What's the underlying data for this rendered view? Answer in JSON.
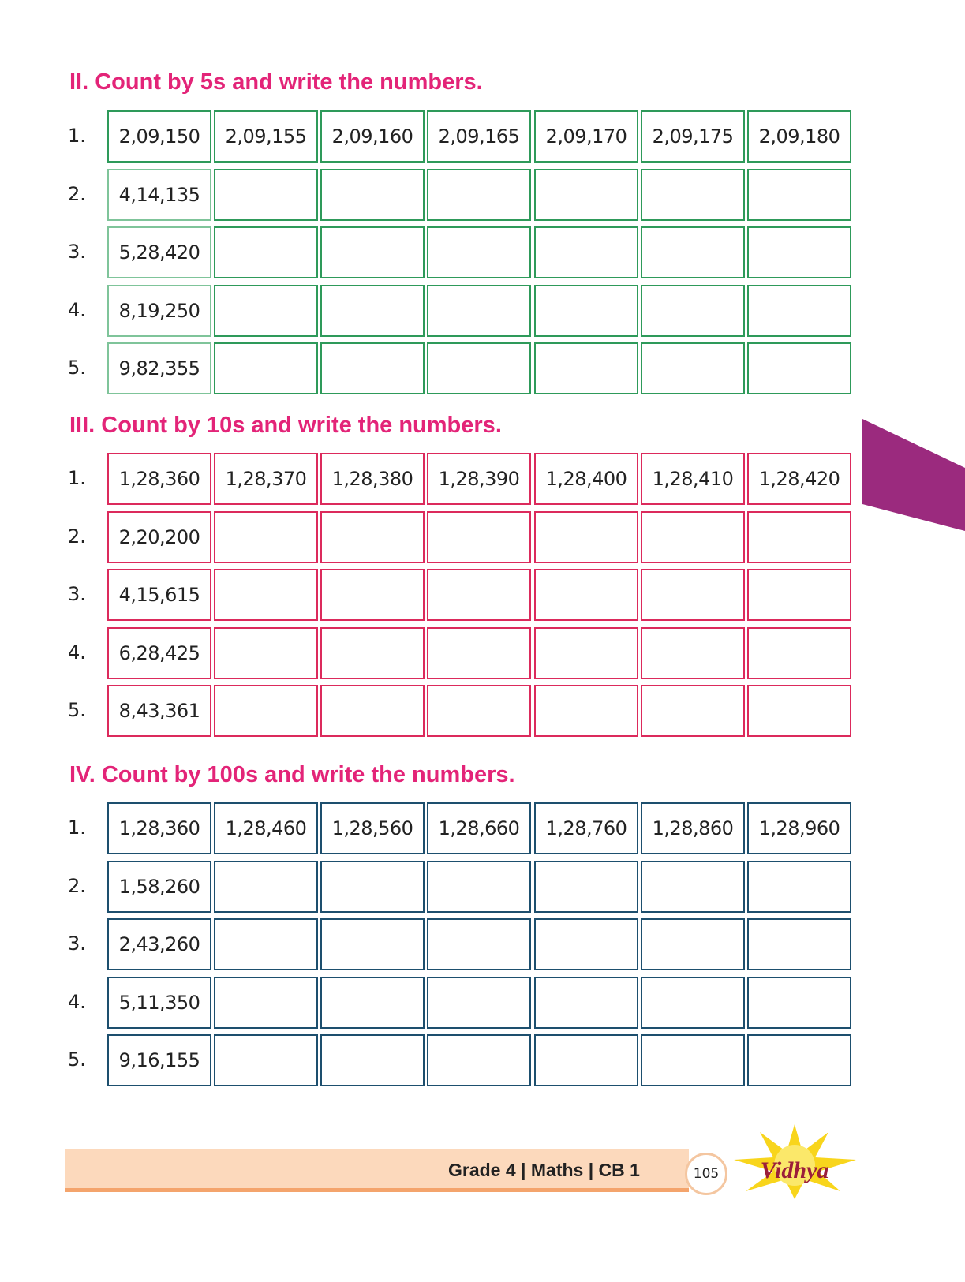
{
  "sections": [
    {
      "heading": "II. Count by 5s and write the numbers.",
      "color": "#2e9a5a",
      "rows": [
        {
          "label": "1.",
          "cells": [
            "2,09,150",
            "2,09,155",
            "2,09,160",
            "2,09,165",
            "2,09,170",
            "2,09,175",
            "2,09,180"
          ]
        },
        {
          "label": "2.",
          "cells": [
            "4,14,135",
            "",
            "",
            "",
            "",
            "",
            ""
          ]
        },
        {
          "label": "3.",
          "cells": [
            "5,28,420",
            "",
            "",
            "",
            "",
            "",
            ""
          ]
        },
        {
          "label": "4.",
          "cells": [
            "8,19,250",
            "",
            "",
            "",
            "",
            "",
            ""
          ]
        },
        {
          "label": "5.",
          "cells": [
            "9,82,355",
            "",
            "",
            "",
            "",
            "",
            ""
          ]
        }
      ]
    },
    {
      "heading": "III. Count by 10s and write the numbers.",
      "color": "#dc2a5c",
      "rows": [
        {
          "label": "1.",
          "cells": [
            "1,28,360",
            "1,28,370",
            "1,28,380",
            "1,28,390",
            "1,28,400",
            "1,28,410",
            "1,28,420"
          ]
        },
        {
          "label": "2.",
          "cells": [
            "2,20,200",
            "",
            "",
            "",
            "",
            "",
            ""
          ]
        },
        {
          "label": "3.",
          "cells": [
            "4,15,615",
            "",
            "",
            "",
            "",
            "",
            ""
          ]
        },
        {
          "label": "4.",
          "cells": [
            "6,28,425",
            "",
            "",
            "",
            "",
            "",
            ""
          ]
        },
        {
          "label": "5.",
          "cells": [
            "8,43,361",
            "",
            "",
            "",
            "",
            "",
            ""
          ]
        }
      ]
    },
    {
      "heading": "IV. Count by 100s and write the numbers.",
      "color": "#1d4f6e",
      "rows": [
        {
          "label": "1.",
          "cells": [
            "1,28,360",
            "1,28,460",
            "1,28,560",
            "1,28,660",
            "1,28,760",
            "1,28,860",
            "1,28,960"
          ]
        },
        {
          "label": "2.",
          "cells": [
            "1,58,260",
            "",
            "",
            "",
            "",
            "",
            ""
          ]
        },
        {
          "label": "3.",
          "cells": [
            "2,43,260",
            "",
            "",
            "",
            "",
            "",
            ""
          ]
        },
        {
          "label": "4.",
          "cells": [
            "5,11,350",
            "",
            "",
            "",
            "",
            "",
            ""
          ]
        },
        {
          "label": "5.",
          "cells": [
            "9,16,155",
            "",
            "",
            "",
            "",
            "",
            ""
          ]
        }
      ]
    }
  ],
  "footer": {
    "text": "Grade 4 | Maths | CB 1",
    "page_number": "105",
    "logo_text": "Vidhya"
  },
  "colors": {
    "heading": "#e32478",
    "tab": "#9b2a7e",
    "footer_bar": "#fcd9bc"
  }
}
